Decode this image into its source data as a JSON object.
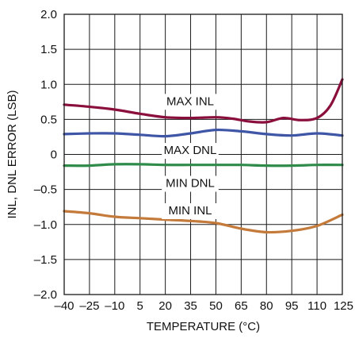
{
  "chart_data": {
    "type": "line",
    "xlabel": "TEMPERATURE (°C)",
    "ylabel": "INL, DNL ERROR (LSB)",
    "xlim": [
      -40,
      125
    ],
    "ylim": [
      -2.0,
      2.0
    ],
    "x_ticks": [
      -40,
      -25,
      -10,
      5,
      20,
      35,
      50,
      65,
      80,
      95,
      110,
      125
    ],
    "x_tick_labels": [
      "–40",
      "–25",
      "–10",
      "5",
      "20",
      "35",
      "50",
      "65",
      "80",
      "95",
      "110",
      "125"
    ],
    "y_ticks": [
      2.0,
      1.5,
      1.0,
      0.5,
      0,
      -0.5,
      -1.0,
      -1.5,
      -2.0
    ],
    "y_tick_labels": [
      "2.0",
      "1.5",
      "1.0",
      "0.5",
      "0",
      "–0.5",
      "–1.0",
      "–1.5",
      "–2.0"
    ],
    "grid": true,
    "series": [
      {
        "name": "MAX INL",
        "color": "#8b0f3c",
        "x": [
          -40,
          -25,
          -10,
          5,
          20,
          35,
          50,
          60,
          70,
          80,
          90,
          100,
          110,
          118,
          125
        ],
        "y": [
          0.71,
          0.68,
          0.64,
          0.58,
          0.53,
          0.52,
          0.53,
          0.51,
          0.47,
          0.46,
          0.52,
          0.49,
          0.52,
          0.7,
          1.07
        ]
      },
      {
        "name": "MAX DNL",
        "color": "#3f55a5",
        "x": [
          -40,
          -25,
          -10,
          5,
          20,
          35,
          50,
          65,
          80,
          95,
          110,
          125
        ],
        "y": [
          0.29,
          0.3,
          0.3,
          0.28,
          0.26,
          0.3,
          0.35,
          0.33,
          0.29,
          0.27,
          0.3,
          0.27
        ]
      },
      {
        "name": "MIN DNL",
        "color": "#2e8b4a",
        "x": [
          -40,
          -25,
          -10,
          5,
          20,
          35,
          50,
          65,
          80,
          95,
          110,
          125
        ],
        "y": [
          -0.16,
          -0.16,
          -0.14,
          -0.14,
          -0.15,
          -0.15,
          -0.15,
          -0.15,
          -0.16,
          -0.16,
          -0.15,
          -0.15
        ]
      },
      {
        "name": "MIN INL",
        "color": "#c47a3a",
        "x": [
          -40,
          -25,
          -10,
          5,
          20,
          35,
          50,
          65,
          80,
          95,
          110,
          125
        ],
        "y": [
          -0.81,
          -0.84,
          -0.89,
          -0.91,
          -0.93,
          -0.95,
          -0.98,
          -1.06,
          -1.11,
          -1.09,
          -1.02,
          -0.86
        ]
      }
    ],
    "annotations": [
      "MAX INL",
      "MAX DNL",
      "MIN DNL",
      "MIN INL"
    ]
  }
}
